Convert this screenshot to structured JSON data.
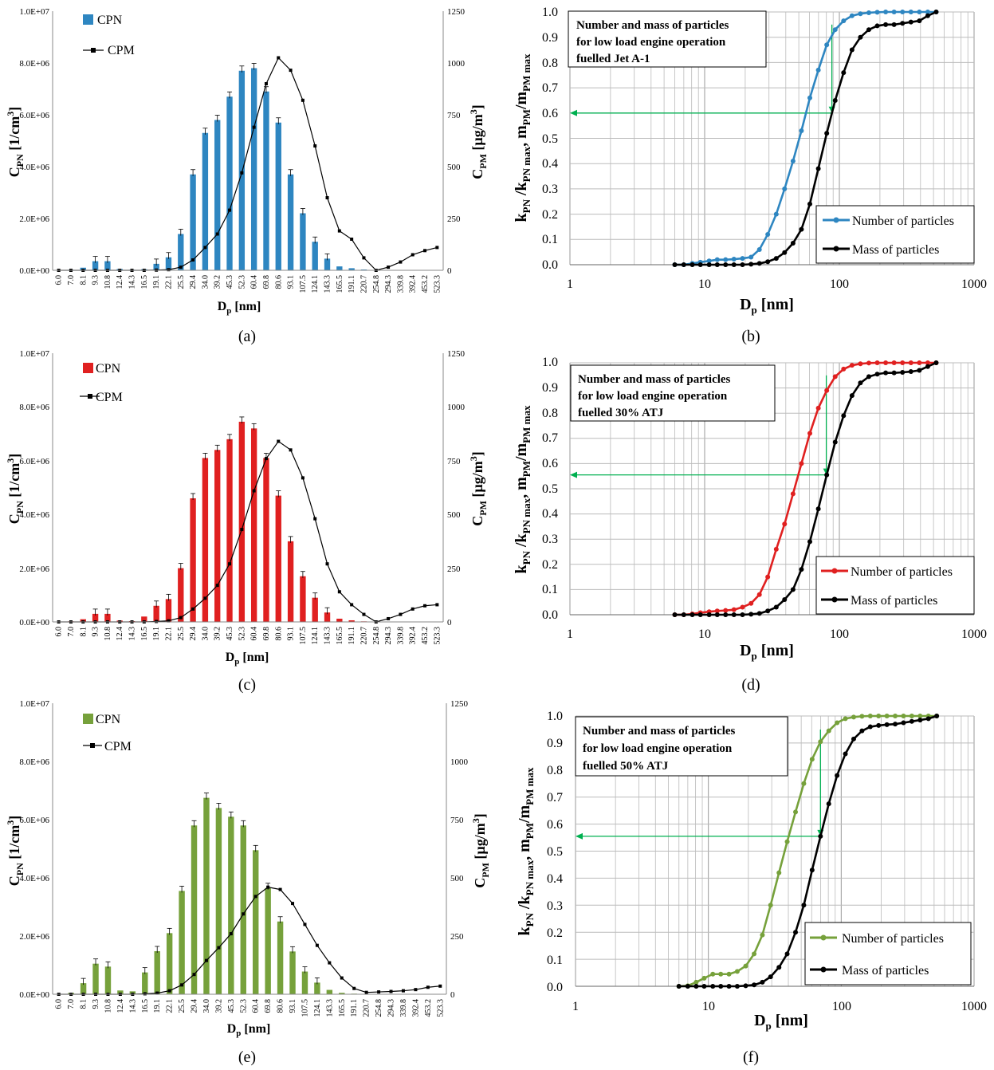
{
  "figure": {
    "bar_x_label": "D",
    "bar_x_label_sub": "p",
    "bar_x_label_unit": " [nm]",
    "bar_ylabel_left_main": "C",
    "bar_ylabel_left_sub": "PN",
    "bar_ylabel_left_unit": " [1/cm",
    "bar_ylabel_left_sup": "3",
    "bar_ylabel_left_close": "]",
    "bar_ylabel_right_main": "C",
    "bar_ylabel_right_sub": "PM",
    "bar_ylabel_right_unit": " [µg/m",
    "bar_ylabel_right_sup": "3",
    "bar_ylabel_right_close": "]",
    "cdf_x_label": "D",
    "cdf_x_label_sub": "p",
    "cdf_x_label_unit": " [nm]",
    "cdf_ylabel_a": "k",
    "cdf_ylabel_a_sub": "PN",
    "cdf_ylabel_b": " /k",
    "cdf_ylabel_b_sub": "PN max",
    "cdf_ylabel_c": ", m",
    "cdf_ylabel_c_sub": "PM",
    "cdf_ylabel_d": "/m",
    "cdf_ylabel_d_sub": "PM max"
  },
  "chart_data": [
    {
      "panel": "(a)",
      "type": "bar",
      "color": "#2e86c1",
      "legend": [
        "CPN",
        "CPM"
      ],
      "categories": [
        "6.0",
        "7.0",
        "8.1",
        "9.3",
        "10.8",
        "12.4",
        "14.3",
        "16.5",
        "19.1",
        "22.1",
        "25.5",
        "29.4",
        "34.0",
        "39.2",
        "45.3",
        "52.3",
        "60.4",
        "69.8",
        "80.6",
        "93.1",
        "107.5",
        "124.1",
        "143.3",
        "165.5",
        "191.1",
        "220.7",
        "254.8",
        "294.3",
        "339.8",
        "392.4",
        "453.2",
        "523.3"
      ],
      "yticks_left": [
        "0.0E+00",
        "2.0E+06",
        "4.0E+06",
        "6.0E+06",
        "8.0E+06",
        "1.0E+07"
      ],
      "yticks_right": [
        "0",
        "250",
        "500",
        "750",
        "1000",
        "1250"
      ],
      "ylim_left": [
        0,
        10000000
      ],
      "ylim_right": [
        0,
        1250
      ],
      "series": [
        {
          "name": "CPN",
          "axis": "left",
          "values": [
            0,
            20000,
            100000,
            350000,
            350000,
            50000,
            20000,
            40000,
            250000,
            500000,
            1400000,
            3700000,
            5300000,
            5800000,
            6700000,
            7700000,
            7800000,
            6900000,
            5700000,
            3700000,
            2200000,
            1100000,
            450000,
            150000,
            80000,
            30000,
            10000,
            0,
            0,
            0,
            0,
            0
          ]
        },
        {
          "name": "CPM",
          "axis": "right",
          "values": [
            0,
            0,
            0,
            0,
            0,
            0,
            0,
            0,
            1,
            3,
            15,
            50,
            110,
            175,
            290,
            470,
            690,
            900,
            1025,
            965,
            820,
            600,
            350,
            190,
            150,
            60,
            0,
            15,
            40,
            75,
            95,
            110
          ]
        }
      ]
    },
    {
      "panel": "(b)",
      "type": "line",
      "xscale": "log",
      "title_lines": [
        "Number and mass of particles",
        "for low load engine operation",
        "fuelled Jet A-1"
      ],
      "xlim": [
        1,
        1000
      ],
      "ylim": [
        0,
        1
      ],
      "xticks": [
        "1",
        "10",
        "100",
        "1000"
      ],
      "yticks": [
        "0.0",
        "0.1",
        "0.2",
        "0.3",
        "0.4",
        "0.5",
        "0.6",
        "0.7",
        "0.8",
        "0.9",
        "1.0"
      ],
      "number_color": "#2e86c1",
      "legend": [
        "Number of particles",
        "Mass of particles"
      ],
      "x": [
        6.0,
        7.0,
        8.1,
        9.3,
        10.8,
        12.4,
        14.3,
        16.5,
        19.1,
        22.1,
        25.5,
        29.4,
        34.0,
        39.2,
        45.3,
        52.3,
        60.4,
        69.8,
        80.6,
        93.1,
        107.5,
        124.1,
        143.3,
        165.5,
        191.1,
        220.7,
        254.8,
        294.3,
        339.8,
        392.4,
        453.2,
        523.3
      ],
      "series": [
        {
          "name": "Number of particles",
          "values": [
            0.0,
            0.0,
            0.005,
            0.01,
            0.015,
            0.02,
            0.02,
            0.022,
            0.025,
            0.03,
            0.06,
            0.12,
            0.2,
            0.3,
            0.41,
            0.53,
            0.66,
            0.77,
            0.87,
            0.93,
            0.965,
            0.985,
            0.993,
            0.997,
            0.999,
            1.0,
            1.0,
            1.0,
            1.0,
            1.0,
            1.0,
            1.0
          ]
        },
        {
          "name": "Mass of particles",
          "values": [
            0.0,
            0.0,
            0.0,
            0.0,
            0.0,
            0.0,
            0.0,
            0.0,
            0.0,
            0.002,
            0.005,
            0.012,
            0.025,
            0.048,
            0.085,
            0.14,
            0.24,
            0.38,
            0.52,
            0.65,
            0.76,
            0.85,
            0.9,
            0.93,
            0.945,
            0.95,
            0.95,
            0.955,
            0.96,
            0.965,
            0.985,
            1.0
          ]
        }
      ],
      "annotation": {
        "x": 88,
        "y": 0.6
      }
    },
    {
      "panel": "(c)",
      "type": "bar",
      "color": "#e02020",
      "legend": [
        "CPN",
        "CPM"
      ],
      "categories": [
        "6.0",
        "7.0",
        "8.1",
        "9.3",
        "10.8",
        "12.4",
        "14.3",
        "16.5",
        "19.1",
        "22.1",
        "25.5",
        "29.4",
        "34.0",
        "39.2",
        "45.3",
        "52.3",
        "60.4",
        "69.8",
        "80.6",
        "93.1",
        "107.5",
        "124.1",
        "143.3",
        "165.5",
        "191.1",
        "220.7",
        "254.8",
        "294.3",
        "339.8",
        "392.4",
        "453.2",
        "523.3"
      ],
      "yticks_left": [
        "0.0E+00",
        "2.0E+06",
        "4.0E+06",
        "6.0E+06",
        "8.0E+06",
        "1.0E+07"
      ],
      "yticks_right": [
        "0",
        "250",
        "500",
        "750",
        "1000",
        "1250"
      ],
      "ylim_left": [
        0,
        10000000
      ],
      "ylim_right": [
        0,
        1250
      ],
      "series": [
        {
          "name": "CPN",
          "axis": "left",
          "values": [
            0,
            20000,
            100000,
            300000,
            300000,
            50000,
            30000,
            200000,
            600000,
            850000,
            2000000,
            4600000,
            6100000,
            6400000,
            6800000,
            7450000,
            7200000,
            6100000,
            4700000,
            3000000,
            1700000,
            900000,
            350000,
            120000,
            60000,
            20000,
            10000,
            0,
            0,
            0,
            0,
            0
          ]
        },
        {
          "name": "CPM",
          "axis": "right",
          "values": [
            0,
            0,
            0,
            0,
            0,
            0,
            0,
            0,
            2,
            5,
            20,
            60,
            110,
            170,
            270,
            430,
            610,
            760,
            840,
            800,
            670,
            480,
            270,
            140,
            80,
            35,
            0,
            15,
            35,
            60,
            75,
            80
          ]
        }
      ]
    },
    {
      "panel": "(d)",
      "type": "line",
      "xscale": "log",
      "title_lines": [
        "Number and mass of particles",
        "for low load engine operation",
        "fuelled 30% ATJ"
      ],
      "xlim": [
        1,
        1000
      ],
      "ylim": [
        0,
        1
      ],
      "xticks": [
        "1",
        "10",
        "100",
        "1000"
      ],
      "yticks": [
        "0.0",
        "0.1",
        "0.2",
        "0.3",
        "0.4",
        "0.5",
        "0.6",
        "0.7",
        "0.8",
        "0.9",
        "1.0"
      ],
      "number_color": "#e02020",
      "legend": [
        "Number of particles",
        "Mass of particles"
      ],
      "x": [
        6.0,
        7.0,
        8.1,
        9.3,
        10.8,
        12.4,
        14.3,
        16.5,
        19.1,
        22.1,
        25.5,
        29.4,
        34.0,
        39.2,
        45.3,
        52.3,
        60.4,
        69.8,
        80.6,
        93.1,
        107.5,
        124.1,
        143.3,
        165.5,
        191.1,
        220.7,
        254.8,
        294.3,
        339.8,
        392.4,
        453.2,
        523.3
      ],
      "series": [
        {
          "name": "Number of particles",
          "values": [
            0.0,
            0.0,
            0.003,
            0.008,
            0.012,
            0.015,
            0.017,
            0.02,
            0.03,
            0.045,
            0.08,
            0.15,
            0.26,
            0.36,
            0.48,
            0.6,
            0.72,
            0.82,
            0.89,
            0.945,
            0.975,
            0.99,
            0.996,
            0.999,
            1.0,
            1.0,
            1.0,
            1.0,
            1.0,
            1.0,
            1.0,
            1.0
          ]
        },
        {
          "name": "Mass of particles",
          "values": [
            0.0,
            0.0,
            0.0,
            0.0,
            0.0,
            0.0,
            0.0,
            0.0,
            0.0,
            0.002,
            0.005,
            0.015,
            0.03,
            0.06,
            0.1,
            0.18,
            0.29,
            0.42,
            0.555,
            0.685,
            0.79,
            0.87,
            0.92,
            0.945,
            0.955,
            0.96,
            0.96,
            0.962,
            0.965,
            0.97,
            0.985,
            1.0
          ]
        }
      ],
      "annotation": {
        "x": 80,
        "y": 0.555
      }
    },
    {
      "panel": "(e)",
      "type": "bar",
      "color": "#76a13b",
      "legend": [
        "CPN",
        "CPM"
      ],
      "categories": [
        "6.0",
        "7.0",
        "8.1",
        "9.3",
        "10.8",
        "12.4",
        "14.3",
        "16.5",
        "19.1",
        "22.1",
        "25.5",
        "29.4",
        "34.0",
        "39.2",
        "45.3",
        "52.3",
        "60.4",
        "69.8",
        "80.6",
        "93.1",
        "107.5",
        "124.1",
        "143.3",
        "165.5",
        "191.1",
        "220.7",
        "254.8",
        "294.3",
        "339.8",
        "392.4",
        "453.2",
        "523.3"
      ],
      "yticks_left": [
        "0.0E+00",
        "2.0E+06",
        "4.0E+06",
        "6.0E+06",
        "8.0E+06",
        "1.0E+07"
      ],
      "yticks_right": [
        "0",
        "250",
        "500",
        "750",
        "1000",
        "1250"
      ],
      "ylim_left": [
        0,
        10000000
      ],
      "ylim_right": [
        0,
        1250
      ],
      "series": [
        {
          "name": "CPN",
          "axis": "left",
          "values": [
            0,
            50000,
            380000,
            1050000,
            950000,
            130000,
            100000,
            750000,
            1480000,
            2100000,
            3550000,
            5800000,
            6750000,
            6400000,
            6100000,
            5800000,
            4950000,
            3650000,
            2500000,
            1470000,
            780000,
            400000,
            150000,
            50000,
            20000,
            10000,
            0,
            0,
            0,
            0,
            0,
            0
          ]
        },
        {
          "name": "CPM",
          "axis": "right",
          "values": [
            0,
            0,
            0,
            0,
            0,
            0,
            0,
            2,
            5,
            15,
            40,
            85,
            145,
            200,
            260,
            345,
            420,
            460,
            450,
            390,
            300,
            210,
            135,
            70,
            25,
            8,
            10,
            12,
            15,
            20,
            30,
            35
          ]
        }
      ]
    },
    {
      "panel": "(f)",
      "type": "line",
      "xscale": "log",
      "title_lines": [
        "Number and mass of particles",
        "for low load engine operation",
        "fuelled 50% ATJ"
      ],
      "xlim": [
        1,
        1000
      ],
      "ylim": [
        0,
        1
      ],
      "xticks": [
        "1",
        "10",
        "100",
        "1000"
      ],
      "yticks": [
        "0.0",
        "0.1",
        "0.2",
        "0.3",
        "0.4",
        "0.5",
        "0.6",
        "0.7",
        "0.8",
        "0.9",
        "1.0"
      ],
      "number_color": "#76a13b",
      "legend": [
        "Number of particles",
        "Mass of particles"
      ],
      "x": [
        6.0,
        7.0,
        8.1,
        9.3,
        10.8,
        12.4,
        14.3,
        16.5,
        19.1,
        22.1,
        25.5,
        29.4,
        34.0,
        39.2,
        45.3,
        52.3,
        60.4,
        69.8,
        80.6,
        93.1,
        107.5,
        124.1,
        143.3,
        165.5,
        191.1,
        220.7,
        254.8,
        294.3,
        339.8,
        392.4,
        453.2,
        523.3
      ],
      "series": [
        {
          "name": "Number of particles",
          "values": [
            0.0,
            0.002,
            0.015,
            0.03,
            0.045,
            0.045,
            0.045,
            0.055,
            0.075,
            0.12,
            0.19,
            0.3,
            0.42,
            0.535,
            0.645,
            0.75,
            0.84,
            0.905,
            0.945,
            0.975,
            0.99,
            0.996,
            0.999,
            1.0,
            1.0,
            1.0,
            1.0,
            1.0,
            1.0,
            1.0,
            1.0,
            1.0
          ]
        },
        {
          "name": "Mass of particles",
          "values": [
            0.0,
            0.0,
            0.0,
            0.0,
            0.0,
            0.0,
            0.0,
            0.0,
            0.002,
            0.005,
            0.015,
            0.035,
            0.07,
            0.12,
            0.2,
            0.3,
            0.43,
            0.555,
            0.675,
            0.78,
            0.86,
            0.915,
            0.945,
            0.96,
            0.965,
            0.968,
            0.97,
            0.975,
            0.98,
            0.985,
            0.99,
            1.0
          ]
        }
      ],
      "annotation": {
        "x": 69.8,
        "y": 0.555
      }
    }
  ]
}
